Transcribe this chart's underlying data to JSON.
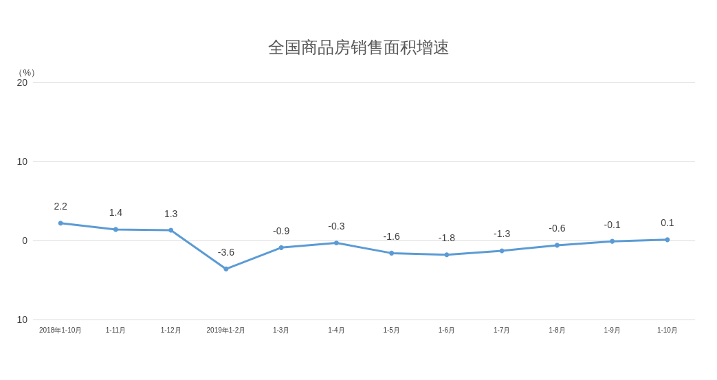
{
  "chart_data": {
    "type": "line",
    "title": "全国商品房销售面积增速",
    "ylabel": "（%）",
    "categories": [
      "2018年1-10月",
      "1-11月",
      "1-12月",
      "2019年1-2月",
      "1-3月",
      "1-4月",
      "1-5月",
      "1-6月",
      "1-7月",
      "1-8月",
      "1-9月",
      "1-10月"
    ],
    "series": [
      {
        "color": "#5b9bd5",
        "values": [
          2.2,
          1.4,
          1.3,
          -3.6,
          -0.9,
          -0.3,
          -1.6,
          -1.8,
          -1.3,
          -0.6,
          -0.1,
          0.1
        ]
      }
    ],
    "ylim": [
      -10,
      20
    ],
    "yticks": [
      {
        "value": -10,
        "label": "10"
      },
      0,
      10,
      20
    ],
    "grid": "y",
    "marker": "circle",
    "line_style": "solid",
    "data_labels": true
  }
}
